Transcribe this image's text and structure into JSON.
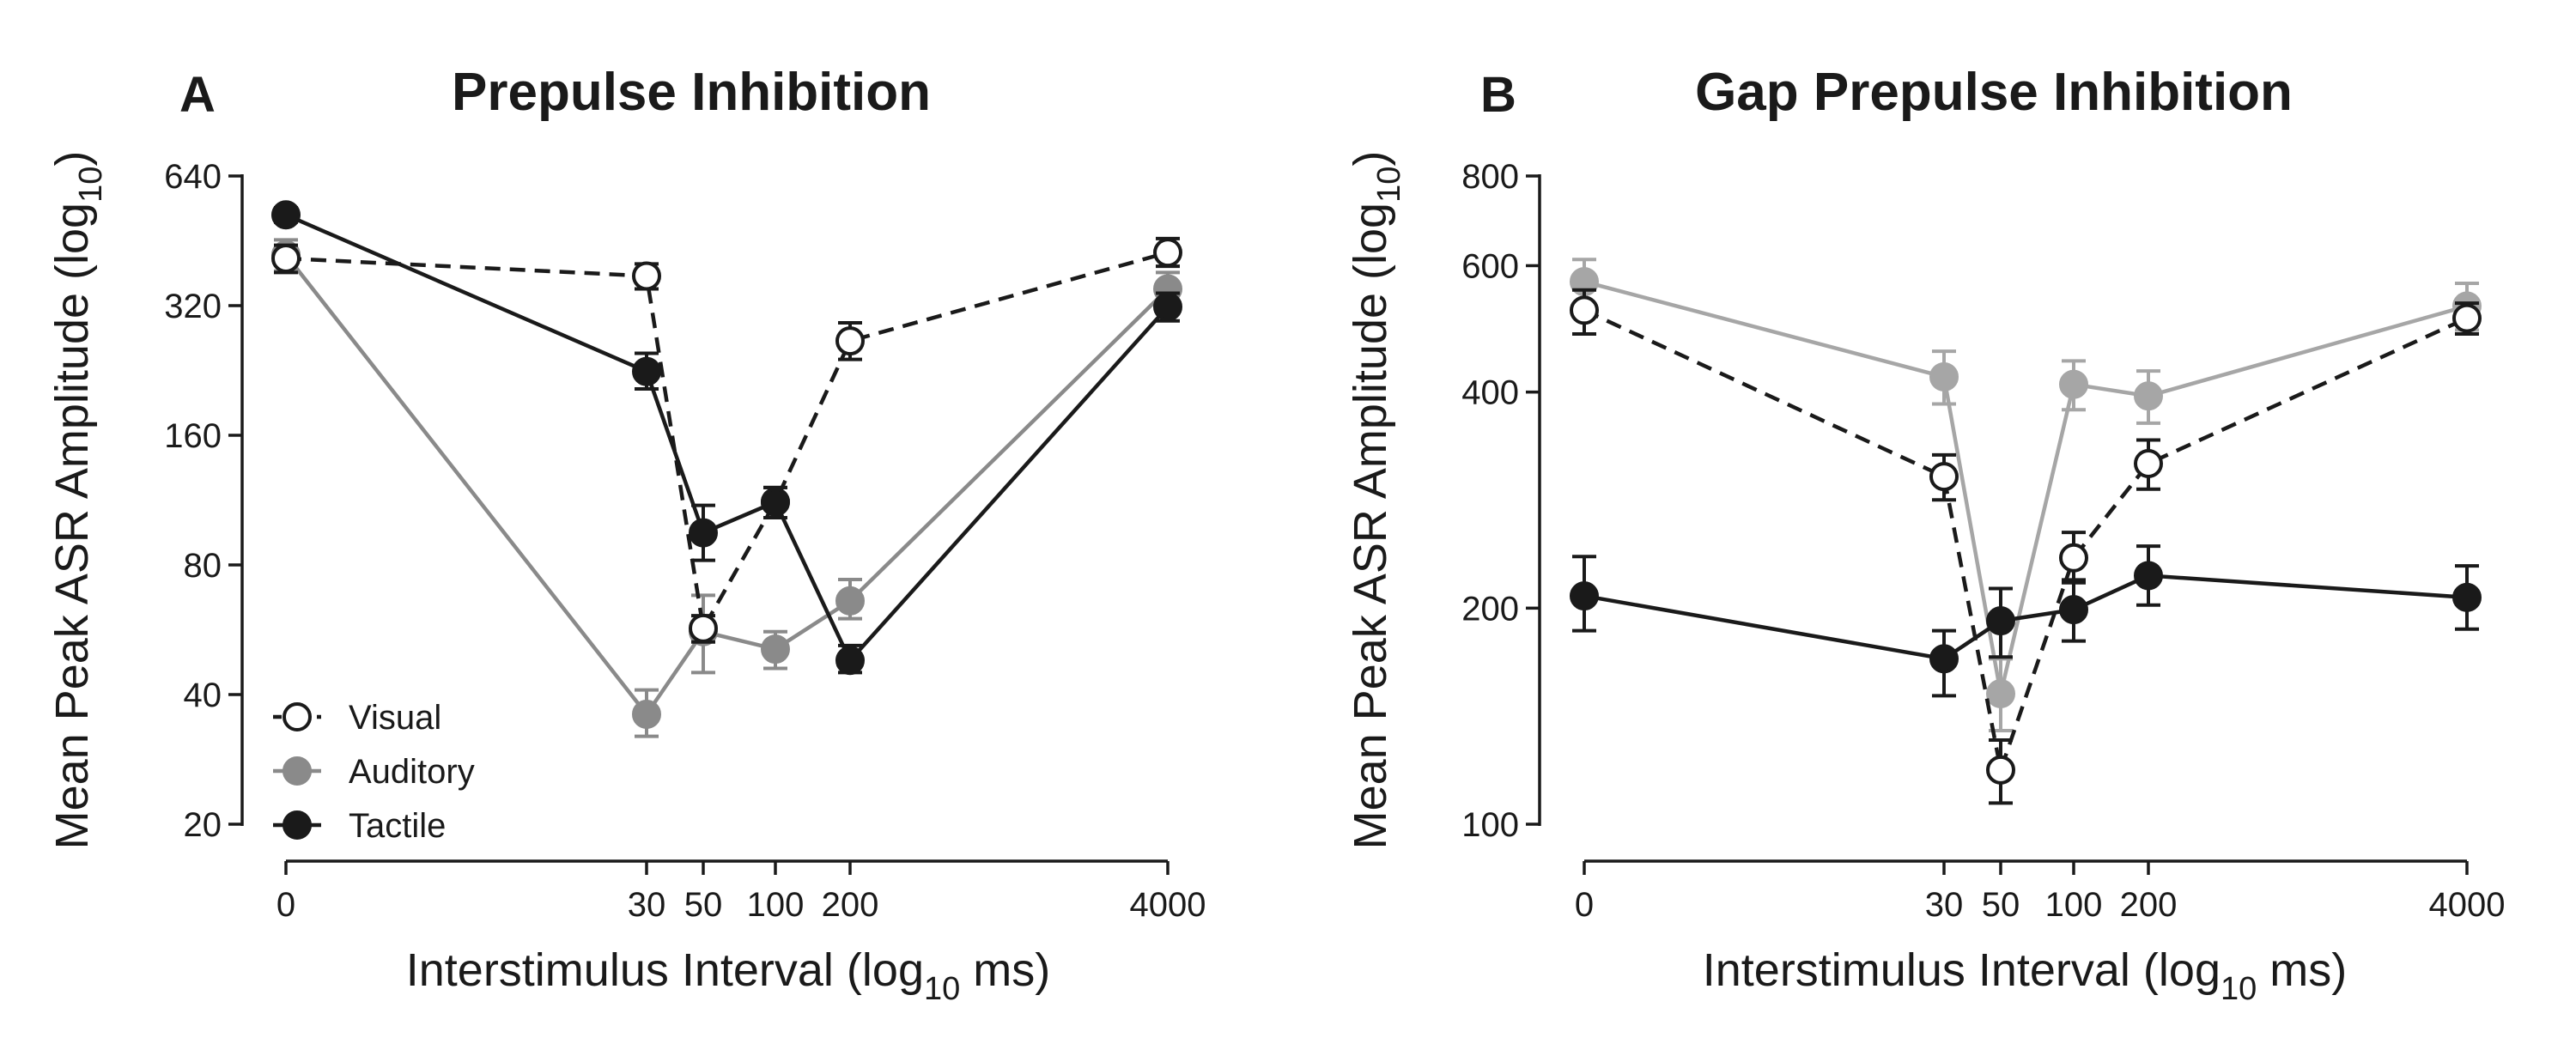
{
  "chart_data": [
    {
      "type": "line",
      "panel_label": "A",
      "title": "Prepulse Inhibition",
      "xlabel": {
        "main": "Interstimulus Interval (log",
        "sub": "10",
        "tail": " ms)"
      },
      "ylabel": {
        "main": "Mean Peak ASR Amplitude (log",
        "sub": "10",
        "tail": ")"
      },
      "x_values": [
        0,
        30,
        50,
        100,
        200,
        4000
      ],
      "x_tick_labels": [
        "0",
        "30",
        "50",
        "100",
        "200",
        "4000"
      ],
      "yscale": "log2",
      "ylim": [
        20,
        640
      ],
      "y_ticks": [
        20,
        40,
        80,
        160,
        320,
        640
      ],
      "y_tick_labels": [
        "20",
        "40",
        "80",
        "160",
        "320",
        "640"
      ],
      "legend": {
        "placement": "bottom-left",
        "entries": [
          "Visual",
          "Auditory",
          "Tactile"
        ]
      },
      "series": [
        {
          "name": "Auditory",
          "style": "filled",
          "line": "solid",
          "color": "#8a8a8a",
          "values": [
            420,
            36,
            56,
            51,
            66,
            350
          ],
          "err_low": [
            385,
            32,
            45,
            46,
            60,
            320
          ],
          "err_high": [
            455,
            41,
            68,
            56,
            74,
            382
          ]
        },
        {
          "name": "Visual",
          "style": "open",
          "line": "dashed",
          "color": "#1a1a1a",
          "values": [
            412,
            375,
            57,
            112,
            265,
            425
          ],
          "err_low": [
            382,
            350,
            53,
            103,
            240,
            395
          ],
          "err_high": [
            442,
            400,
            61,
            121,
            292,
            458
          ]
        },
        {
          "name": "Tactile",
          "style": "filled",
          "line": "solid",
          "color": "#1a1a1a",
          "values": [
            520,
            225,
            95,
            112,
            48,
            318
          ],
          "err_low": [
            500,
            205,
            82,
            103,
            45,
            295
          ],
          "err_high": [
            540,
            248,
            110,
            121,
            52,
            342
          ]
        }
      ]
    },
    {
      "type": "line",
      "panel_label": "B",
      "title": "Gap Prepulse  Inhibition",
      "xlabel": {
        "main": "Interstimulus Interval (log",
        "sub": "10",
        "tail": " ms)"
      },
      "ylabel": {
        "main": "Mean Peak ASR Amplitude (log",
        "sub": "10",
        "tail": ")"
      },
      "x_values": [
        0,
        30,
        50,
        100,
        200,
        4000
      ],
      "x_tick_labels": [
        "0",
        "30",
        "50",
        "100",
        "200",
        "4000"
      ],
      "yscale": "log",
      "ylim": [
        100,
        800
      ],
      "y_ticks": [
        100,
        200,
        400,
        600,
        800
      ],
      "y_tick_labels": [
        "100",
        "200",
        "400",
        "600",
        "800"
      ],
      "series": [
        {
          "name": "Auditory",
          "style": "filled",
          "line": "solid",
          "color": "#a6a6a6",
          "values": [
            570,
            420,
            152,
            410,
            395,
            527
          ],
          "err_low": [
            530,
            385,
            135,
            378,
            362,
            488
          ],
          "err_high": [
            612,
            456,
            170,
            442,
            428,
            567
          ]
        },
        {
          "name": "Visual",
          "style": "open",
          "line": "dashed",
          "color": "#1a1a1a",
          "values": [
            520,
            305,
            119,
            235,
            318,
            507
          ],
          "err_low": [
            482,
            283,
            107,
            217,
            293,
            482
          ],
          "err_high": [
            555,
            327,
            131,
            255,
            343,
            532
          ]
        },
        {
          "name": "Tactile",
          "style": "filled",
          "line": "solid",
          "color": "#1a1a1a",
          "values": [
            208,
            170,
            192,
            199,
            222,
            207
          ],
          "err_low": [
            186,
            151,
            171,
            180,
            202,
            187
          ],
          "err_high": [
            236,
            186,
            213,
            219,
            244,
            229
          ]
        }
      ]
    }
  ]
}
